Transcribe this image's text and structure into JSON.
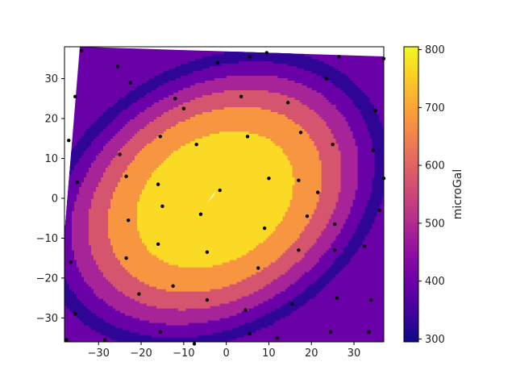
{
  "chart_data": {
    "type": "filled-contour",
    "colormap": "plasma",
    "title": "",
    "xlabel": "",
    "ylabel": "",
    "xlim": [
      -38,
      37
    ],
    "ylim": [
      -36,
      38
    ],
    "xticks": [
      -30,
      -20,
      -10,
      0,
      10,
      20,
      30
    ],
    "yticks": [
      -30,
      -20,
      -10,
      0,
      10,
      20,
      30
    ],
    "colorbar": {
      "label": "microGal",
      "range": [
        295,
        805
      ],
      "ticks": [
        300,
        400,
        500,
        600,
        700,
        800
      ]
    },
    "contour_levels": [
      {
        "value": 325,
        "color": "#2f0596"
      },
      {
        "value": 400,
        "color": "#6a00a8"
      },
      {
        "value": 475,
        "color": "#a62497"
      },
      {
        "value": 550,
        "color": "#d5546e"
      },
      {
        "value": 625,
        "color": "#f89540"
      },
      {
        "value": 710,
        "color": "#fada24"
      }
    ],
    "colors": {
      "marker": "#000000",
      "axes": "#000000"
    },
    "stations": [
      [
        -37.5,
        -35.5
      ],
      [
        -36.5,
        -16
      ],
      [
        -35.5,
        -29
      ],
      [
        -35,
        4
      ],
      [
        -37,
        14.5
      ],
      [
        -35.5,
        25.5
      ],
      [
        -34,
        37
      ],
      [
        -25.5,
        33
      ],
      [
        -22.5,
        29
      ],
      [
        -25,
        11
      ],
      [
        -23.5,
        5.5
      ],
      [
        -23,
        -5.5
      ],
      [
        -23.5,
        -15
      ],
      [
        -20.5,
        -24
      ],
      [
        -15.5,
        -33.5
      ],
      [
        -12.5,
        -22
      ],
      [
        -16,
        -11.5
      ],
      [
        -15,
        -2
      ],
      [
        -16,
        3.5
      ],
      [
        -15.5,
        15.5
      ],
      [
        -12,
        25
      ],
      [
        -10,
        22.5
      ],
      [
        -7,
        13.5
      ],
      [
        -6,
        -4
      ],
      [
        -4.5,
        -13.5
      ],
      [
        -4.5,
        -25.5
      ],
      [
        -2,
        34
      ],
      [
        -1.5,
        2
      ],
      [
        3.5,
        25.5
      ],
      [
        5,
        15.5
      ],
      [
        5.5,
        35.5
      ],
      [
        9.5,
        36.5
      ],
      [
        4.5,
        -28
      ],
      [
        5.5,
        -34
      ],
      [
        7.5,
        -17.5
      ],
      [
        9,
        -7.5
      ],
      [
        10,
        5
      ],
      [
        14.5,
        24
      ],
      [
        17.5,
        16.5
      ],
      [
        17,
        4.5
      ],
      [
        19,
        -4.5
      ],
      [
        17,
        -13
      ],
      [
        15.5,
        -26.5
      ],
      [
        12,
        -35
      ],
      [
        21.5,
        1.5
      ],
      [
        23.5,
        30
      ],
      [
        25,
        13.5
      ],
      [
        25.5,
        -6.5
      ],
      [
        25.5,
        -13
      ],
      [
        26,
        -25
      ],
      [
        24.5,
        -33.5
      ],
      [
        26.5,
        35.5
      ],
      [
        32.5,
        -12
      ],
      [
        33.5,
        -33.5
      ],
      [
        34,
        -25.5
      ],
      [
        34.5,
        12
      ],
      [
        35,
        22
      ],
      [
        36,
        -3
      ],
      [
        37,
        5
      ],
      [
        37,
        35
      ],
      [
        -7.5,
        -36.5
      ],
      [
        -28.5,
        -35.5
      ]
    ]
  }
}
